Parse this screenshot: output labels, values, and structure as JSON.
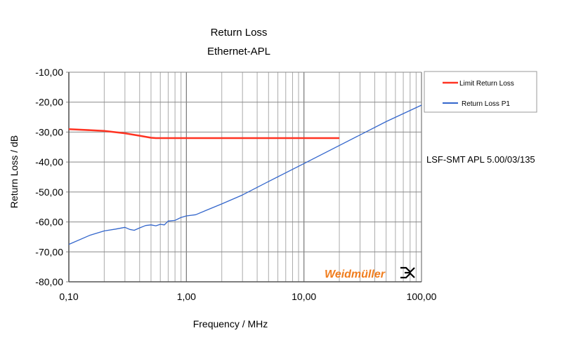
{
  "chart_data": {
    "type": "line",
    "title": "Return Loss",
    "subtitle": "Ethernet-APL",
    "xlabel": "Frequency / MHz",
    "ylabel": "Return Loss / dB",
    "x_scale": "log",
    "xlim": [
      0.1,
      100
    ],
    "ylim": [
      -80,
      -10
    ],
    "x_ticks": [
      "0,10",
      "1,00",
      "10,00",
      "100,00"
    ],
    "y_ticks": [
      "-10,00",
      "-20,00",
      "-30,00",
      "-40,00",
      "-50,00",
      "-60,00",
      "-70,00",
      "-80,00"
    ],
    "grid": true,
    "legend_position": "right",
    "annotation": "LSF-SMT APL 5.00/03/135",
    "logo": "Weidmüller",
    "series": [
      {
        "name": "Limit Return Loss",
        "color": "#ff3322",
        "x": [
          0.1,
          0.2,
          0.3,
          0.4,
          0.5,
          0.55,
          1,
          20
        ],
        "y": [
          -29,
          -29.6,
          -30.4,
          -31.2,
          -31.9,
          -32,
          -32,
          -32
        ]
      },
      {
        "name": "Return Loss P1",
        "color": "#3366cc",
        "x": [
          0.1,
          0.15,
          0.2,
          0.25,
          0.3,
          0.33,
          0.36,
          0.4,
          0.45,
          0.5,
          0.55,
          0.6,
          0.65,
          0.7,
          0.8,
          0.9,
          1,
          1.2,
          1.5,
          2,
          3,
          5,
          10,
          20,
          50,
          100
        ],
        "y": [
          -67.5,
          -64.5,
          -63,
          -62.4,
          -61.8,
          -62.5,
          -62.8,
          -62,
          -61.2,
          -61,
          -61.3,
          -60.8,
          -61,
          -59.7,
          -59.5,
          -58.5,
          -58,
          -57.6,
          -56,
          -54,
          -51,
          -46.5,
          -40.5,
          -34.5,
          -26.5,
          -21
        ]
      }
    ]
  }
}
